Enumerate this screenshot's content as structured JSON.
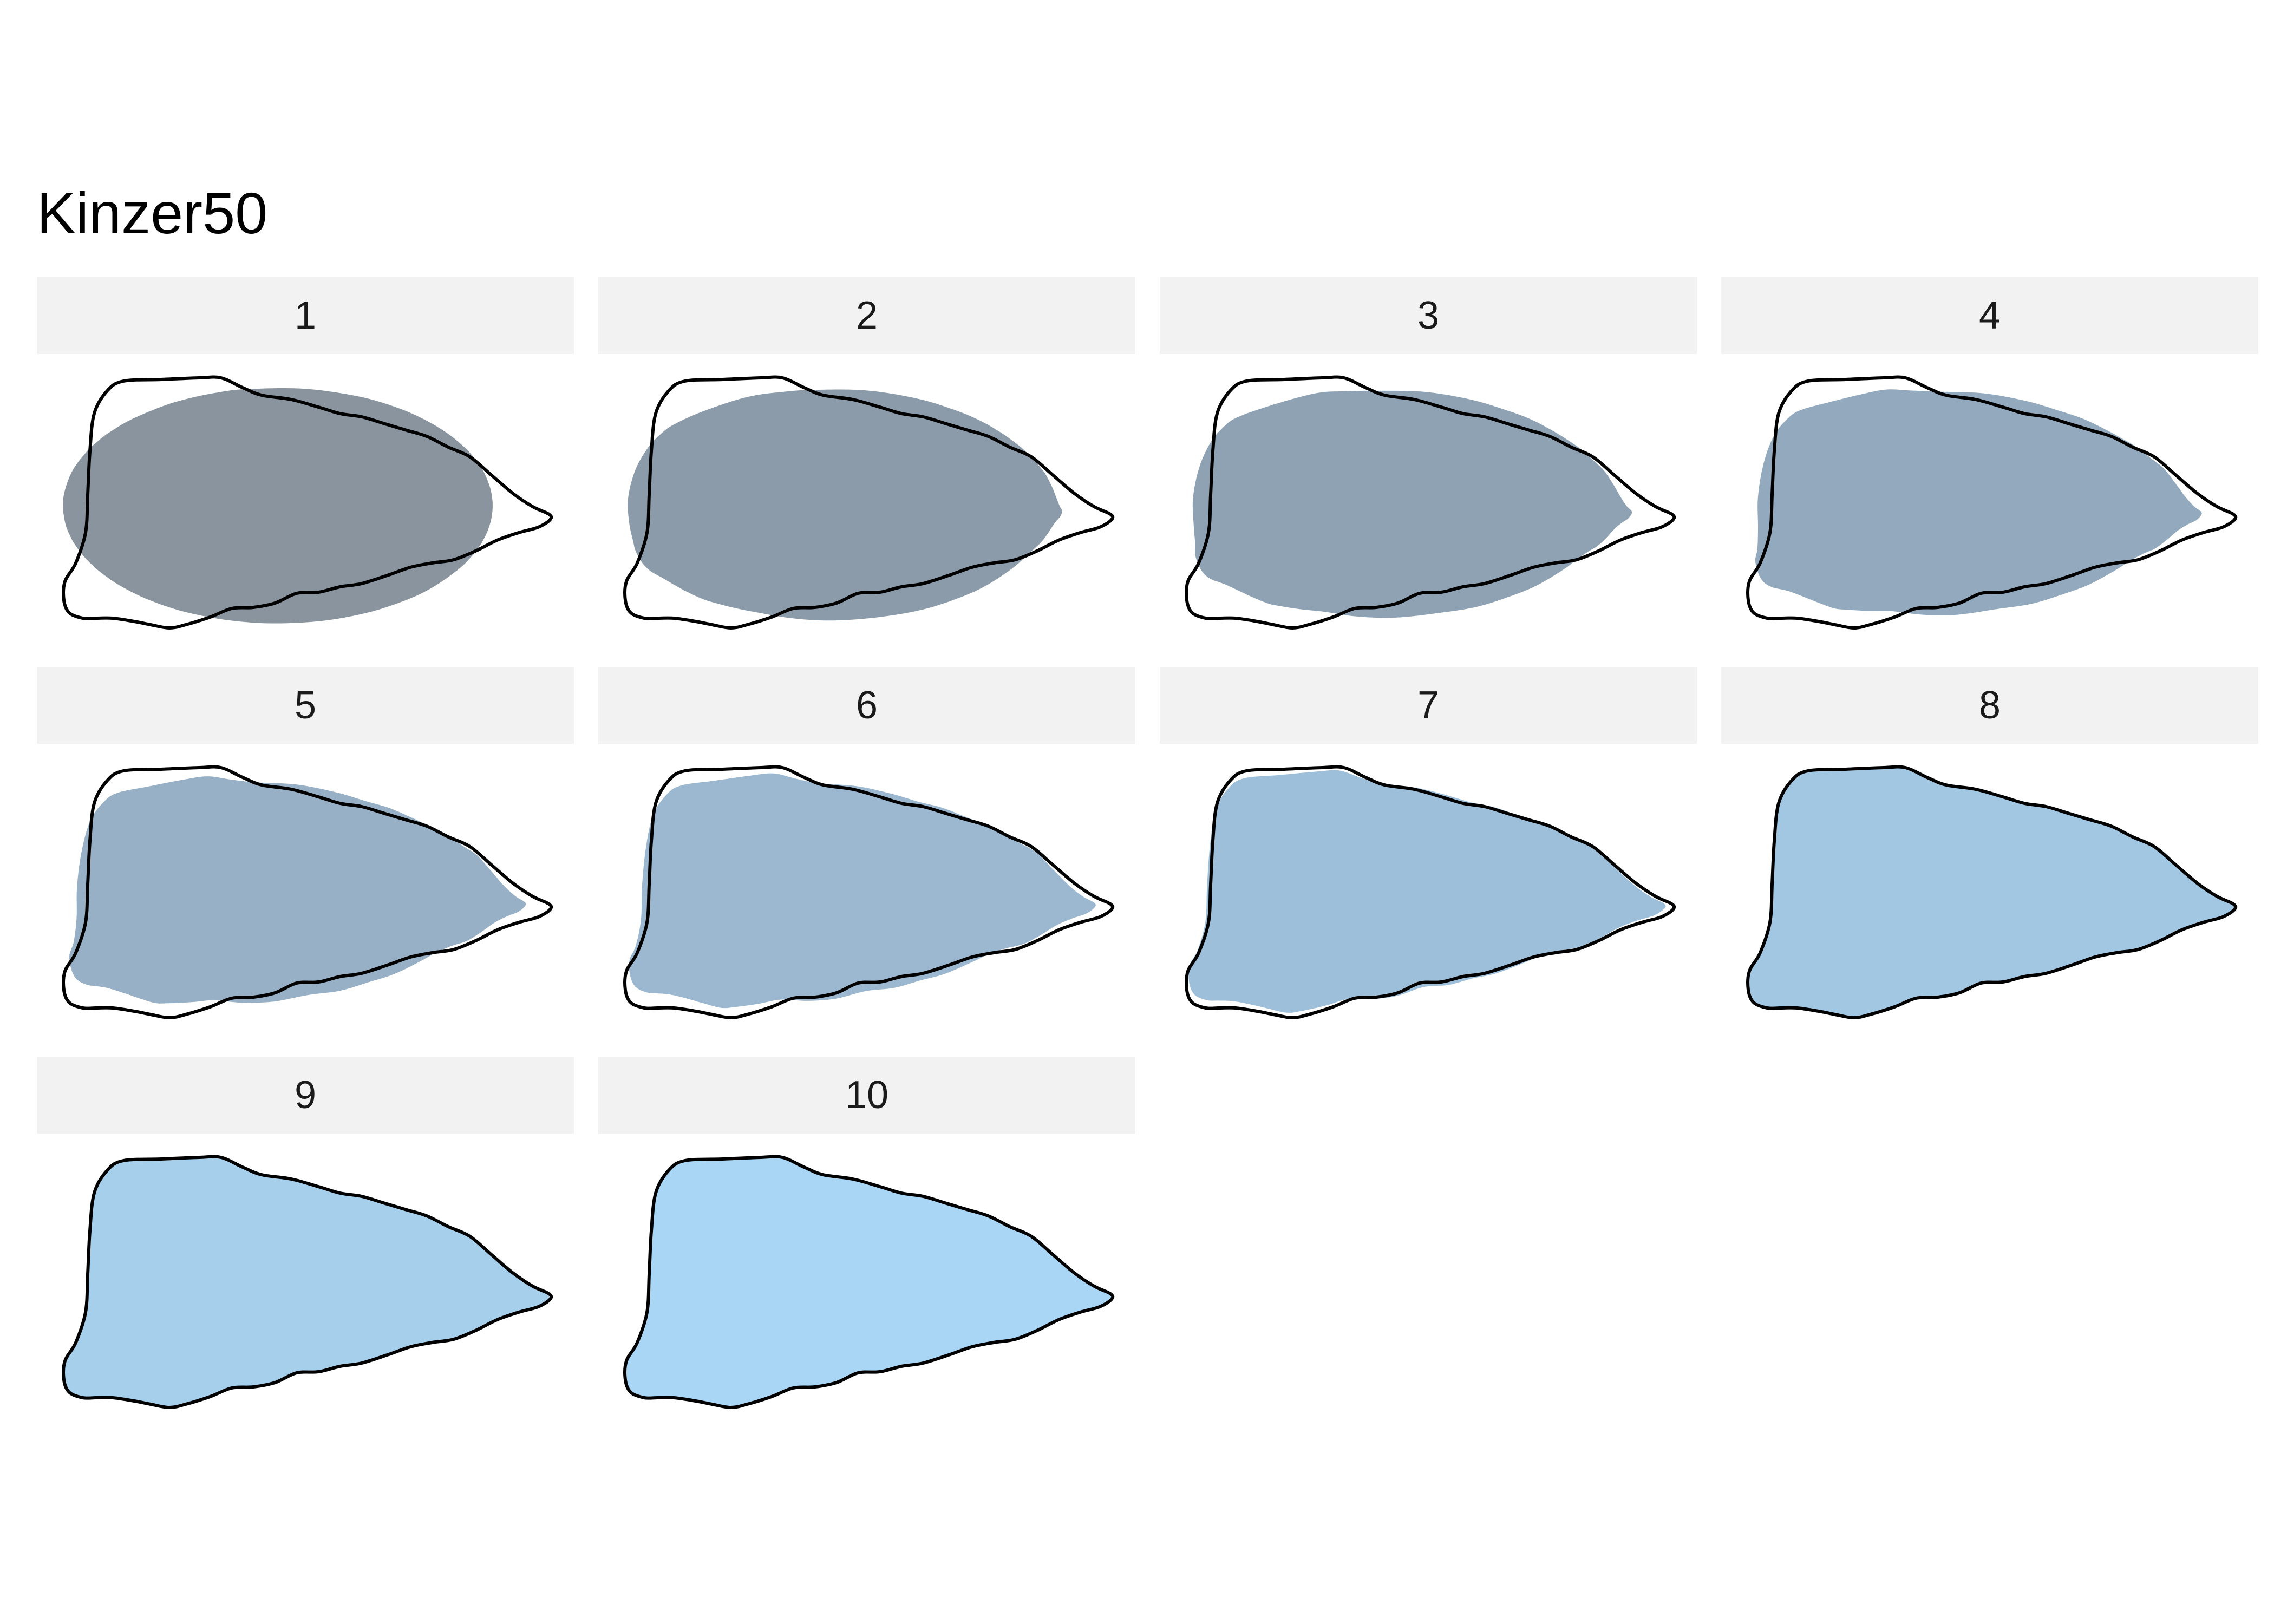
{
  "title": "Kinzer50",
  "colors": {
    "outline": "#000000",
    "strip_background": "#f2f2f2",
    "fill_by_panel": [
      "#89949e",
      "#8b9baa",
      "#8fa2b4",
      "#93a9be",
      "#97b0c6",
      "#9bb8d0",
      "#9ebfd9",
      "#a2c7e3",
      "#a6cfec",
      "#a9d6f5"
    ]
  },
  "panels": [
    {
      "label": "1",
      "harmonics": 1
    },
    {
      "label": "2",
      "harmonics": 2
    },
    {
      "label": "3",
      "harmonics": 3
    },
    {
      "label": "4",
      "harmonics": 4
    },
    {
      "label": "5",
      "harmonics": 5
    },
    {
      "label": "6",
      "harmonics": 6
    },
    {
      "label": "7",
      "harmonics": 7
    },
    {
      "label": "8",
      "harmonics": 8
    },
    {
      "label": "9",
      "harmonics": 9
    },
    {
      "label": "10",
      "harmonics": 10
    }
  ]
}
